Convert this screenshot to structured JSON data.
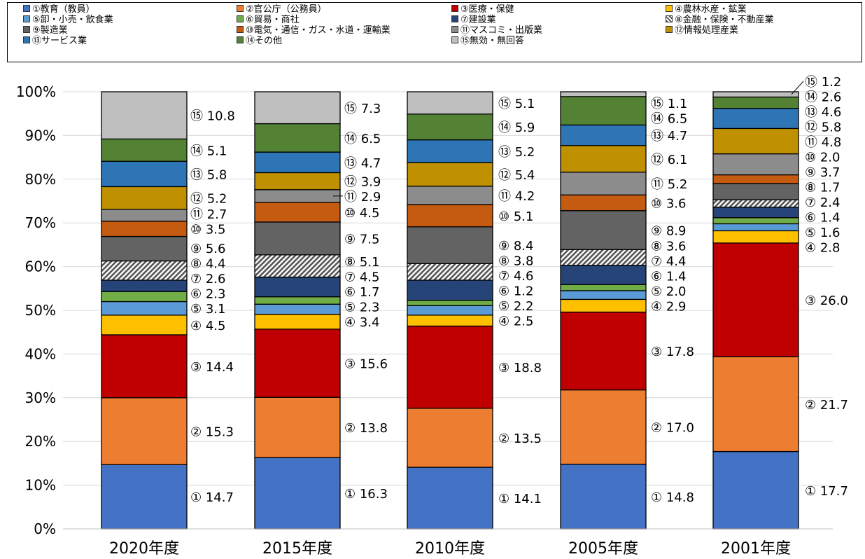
{
  "chart_data": {
    "type": "bar",
    "stacked": true,
    "percent": true,
    "categories": [
      "2020年度",
      "2015年度",
      "2010年度",
      "2005年度",
      "2001年度"
    ],
    "y_ticks": [
      "0%",
      "10%",
      "20%",
      "30%",
      "40%",
      "50%",
      "60%",
      "70%",
      "80%",
      "90%",
      "100%"
    ],
    "ylim": [
      0,
      100
    ],
    "grid": true,
    "legend_position": "top",
    "series": [
      {
        "marker": "①",
        "name": "①教育（教員）",
        "color": "#4472C4",
        "values": [
          14.7,
          16.3,
          14.1,
          14.8,
          17.7
        ]
      },
      {
        "marker": "②",
        "name": "②官公庁（公務員）",
        "color": "#ED7D31",
        "values": [
          15.3,
          13.8,
          13.5,
          17.0,
          21.7
        ]
      },
      {
        "marker": "③",
        "name": "③医療・保健",
        "color": "#C00000",
        "values": [
          14.4,
          15.6,
          18.8,
          17.8,
          26.0
        ]
      },
      {
        "marker": "④",
        "name": "④農林水産・鉱業",
        "color": "#FFC000",
        "values": [
          4.5,
          3.4,
          2.5,
          2.9,
          2.8
        ]
      },
      {
        "marker": "⑤",
        "name": "⑤卸・小売・飲食業",
        "color": "#5B9BD5",
        "values": [
          3.1,
          2.3,
          2.2,
          2.0,
          1.6
        ]
      },
      {
        "marker": "⑥",
        "name": "⑥貿易・商社",
        "color": "#70AD47",
        "values": [
          2.3,
          1.7,
          1.2,
          1.4,
          1.4
        ]
      },
      {
        "marker": "⑦",
        "name": "⑦建設業",
        "color": "#264478",
        "values": [
          2.6,
          4.5,
          4.6,
          4.4,
          2.4
        ]
      },
      {
        "marker": "⑧",
        "name": "⑧金融・保険・不動産業",
        "color": "hatch",
        "values": [
          4.4,
          5.1,
          3.8,
          3.6,
          1.7
        ]
      },
      {
        "marker": "⑨",
        "name": "⑨製造業",
        "color": "#636363",
        "values": [
          5.6,
          7.5,
          8.4,
          8.9,
          3.7
        ]
      },
      {
        "marker": "⑩",
        "name": "⑩電気・通信・ガス・水道・運輸業",
        "color": "#C55A11",
        "values": [
          3.5,
          4.5,
          5.1,
          3.6,
          2.0
        ]
      },
      {
        "marker": "⑪",
        "name": "⑪マスコミ・出版業",
        "color": "#8C8C8C",
        "values": [
          2.7,
          2.9,
          4.2,
          5.2,
          4.8
        ]
      },
      {
        "marker": "⑫",
        "name": "⑫情報処理産業",
        "color": "#BF9000",
        "values": [
          5.2,
          3.9,
          5.4,
          6.1,
          5.8
        ]
      },
      {
        "marker": "⑬",
        "name": "⑬サービス業",
        "color": "#2E75B6",
        "values": [
          5.8,
          4.7,
          5.2,
          4.7,
          4.6
        ]
      },
      {
        "marker": "⑭",
        "name": "⑭その他",
        "color": "#548235",
        "values": [
          5.1,
          6.5,
          5.9,
          6.5,
          2.6
        ]
      },
      {
        "marker": "⑮",
        "name": "⑮無効・無回答",
        "color": "#BFBFBF",
        "values": [
          10.8,
          7.3,
          5.1,
          1.1,
          1.2
        ]
      }
    ]
  }
}
